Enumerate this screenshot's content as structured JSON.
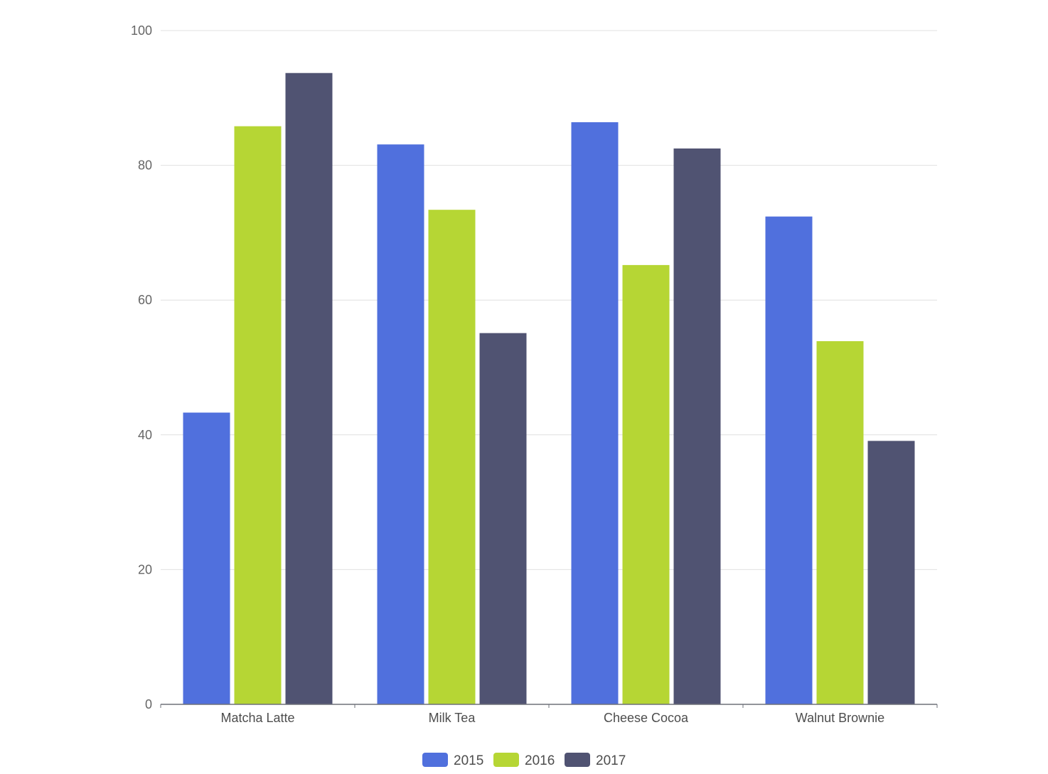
{
  "chart_data": {
    "type": "bar",
    "categories": [
      "Matcha Latte",
      "Milk Tea",
      "Cheese Cocoa",
      "Walnut Brownie"
    ],
    "series": [
      {
        "name": "2015",
        "color": "#5070dd",
        "values": [
          43.3,
          83.1,
          86.4,
          72.4
        ]
      },
      {
        "name": "2016",
        "color": "#b6d634",
        "values": [
          85.8,
          73.4,
          65.2,
          53.9
        ]
      },
      {
        "name": "2017",
        "color": "#505372",
        "values": [
          93.7,
          55.1,
          82.5,
          39.1
        ]
      }
    ],
    "ylim": [
      0,
      100
    ],
    "yticks": [
      "0",
      "20",
      "40",
      "60",
      "80",
      "100"
    ],
    "grid": true,
    "legend_position": "bottom-center",
    "xlabel": "",
    "ylabel": ""
  }
}
